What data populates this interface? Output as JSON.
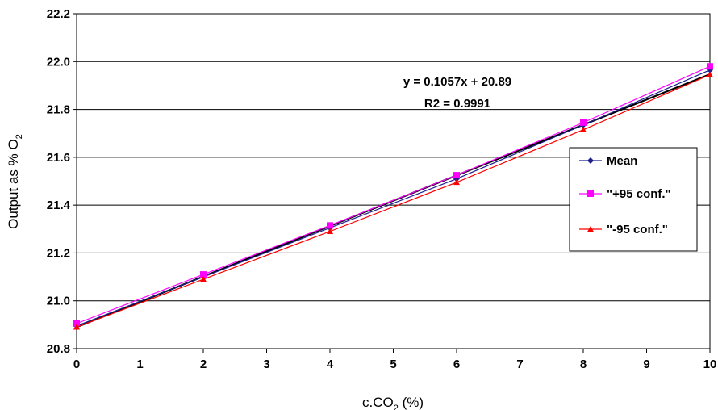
{
  "chart_data": {
    "type": "line",
    "xlabel_main": "c.CO",
    "xlabel_sub": "2",
    "xlabel_tail": " (%)",
    "ylabel_main": "Output as % O",
    "ylabel_sub": "2",
    "xlim": [
      0,
      10
    ],
    "ylim": [
      20.8,
      22.2
    ],
    "x_ticks": [
      "0",
      "1",
      "2",
      "3",
      "4",
      "5",
      "6",
      "7",
      "8",
      "9",
      "10"
    ],
    "y_ticks": [
      "20.8",
      "21.0",
      "21.2",
      "21.4",
      "21.6",
      "21.8",
      "22.0",
      "22.2"
    ],
    "grid": "horizontal",
    "legend_position": "right",
    "series": [
      {
        "name": "Mean",
        "color": "#1f1f8f",
        "marker": "diamond",
        "x": [
          0,
          2,
          4,
          6,
          8,
          10
        ],
        "values": [
          20.895,
          21.1,
          21.305,
          21.51,
          21.735,
          21.965
        ]
      },
      {
        "name": "\"+95 conf.\"",
        "color": "#ff00ff",
        "marker": "square",
        "x": [
          0,
          2,
          4,
          6,
          8,
          10
        ],
        "values": [
          20.905,
          21.11,
          21.315,
          21.525,
          21.745,
          21.98
        ]
      },
      {
        "name": "\"-95 conf.\"",
        "color": "#ff0000",
        "marker": "triangle",
        "x": [
          0,
          2,
          4,
          6,
          8,
          10
        ],
        "values": [
          20.89,
          21.09,
          21.29,
          21.495,
          21.715,
          21.945
        ]
      }
    ],
    "trendline": {
      "slope": 0.1057,
      "intercept": 20.89,
      "color": "#000000"
    },
    "annotations": {
      "equation": "y = 0.1057x + 20.89",
      "r2": "R2 = 0.9991"
    }
  }
}
